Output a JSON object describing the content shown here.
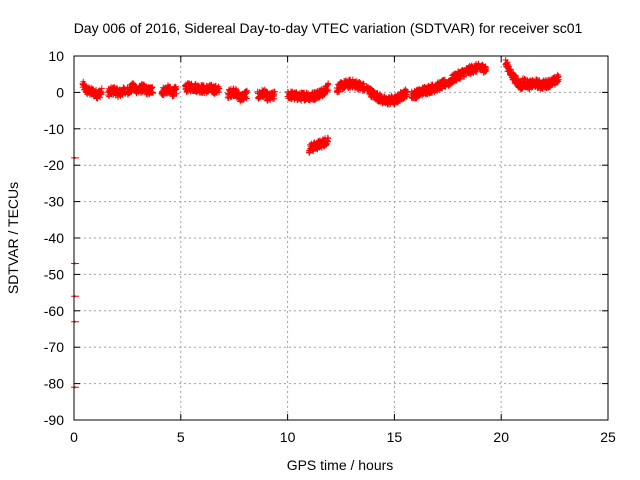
{
  "chart_data": {
    "type": "scatter",
    "title": "Day 006 of 2016, Sidereal Day-to-day VTEC variation (SDTVAR) for receiver sc01",
    "xlabel": "GPS time / hours",
    "ylabel": "SDTVAR / TECUs",
    "xlim": [
      0,
      25
    ],
    "ylim": [
      -90,
      10
    ],
    "xticks": [
      "0",
      "5",
      "10",
      "15",
      "20",
      "25"
    ],
    "yticks": [
      "10",
      "0",
      "-10",
      "-20",
      "-30",
      "-40",
      "-50",
      "-60",
      "-70",
      "-80",
      "-90"
    ],
    "grid": true,
    "marker": "plus",
    "series_color": "#ff0000",
    "segments": [
      {
        "x_start": 0.4,
        "x_end": 1.3,
        "points": [
          [
            0.4,
            2
          ],
          [
            0.6,
            0.5
          ],
          [
            0.9,
            0
          ],
          [
            1.1,
            -0.5
          ],
          [
            1.3,
            0
          ]
        ]
      },
      {
        "x_start": 1.6,
        "x_end": 2.4,
        "points": [
          [
            1.6,
            0
          ],
          [
            1.9,
            0.5
          ],
          [
            2.1,
            -0.3
          ],
          [
            2.4,
            0.5
          ]
        ]
      },
      {
        "x_start": 2.5,
        "x_end": 3.7,
        "points": [
          [
            2.5,
            0.5
          ],
          [
            2.8,
            1.5
          ],
          [
            3.0,
            0.5
          ],
          [
            3.2,
            1.2
          ],
          [
            3.5,
            0.3
          ],
          [
            3.7,
            0.8
          ]
        ]
      },
      {
        "x_start": 4.1,
        "x_end": 4.8,
        "points": [
          [
            4.1,
            0.2
          ],
          [
            4.4,
            0.8
          ],
          [
            4.6,
            0
          ],
          [
            4.8,
            0.5
          ]
        ]
      },
      {
        "x_start": 5.2,
        "x_end": 6.8,
        "points": [
          [
            5.2,
            1.2
          ],
          [
            5.5,
            1.5
          ],
          [
            5.8,
            1.2
          ],
          [
            6.1,
            0.8
          ],
          [
            6.4,
            1.0
          ],
          [
            6.8,
            0.5
          ]
        ]
      },
      {
        "x_start": 7.2,
        "x_end": 8.1,
        "points": [
          [
            7.2,
            -0.5
          ],
          [
            7.5,
            0.3
          ],
          [
            7.8,
            -1.5
          ],
          [
            8.1,
            -0.5
          ]
        ]
      },
      {
        "x_start": 8.6,
        "x_end": 9.4,
        "points": [
          [
            8.6,
            -1.0
          ],
          [
            8.9,
            -0.2
          ],
          [
            9.1,
            -1.5
          ],
          [
            9.4,
            -0.8
          ]
        ]
      },
      {
        "x_start": 10.0,
        "x_end": 11.0,
        "points": [
          [
            10.0,
            -0.5
          ],
          [
            10.3,
            -1.0
          ],
          [
            10.6,
            -1.2
          ],
          [
            11.0,
            -0.8
          ]
        ]
      },
      {
        "x_start": 11.0,
        "x_end": 11.9,
        "points": [
          [
            11.0,
            -1.5
          ],
          [
            11.3,
            -0.8
          ],
          [
            11.6,
            0
          ],
          [
            11.9,
            1.5
          ]
        ]
      },
      {
        "x_start": 11.0,
        "x_end": 11.9,
        "points": [
          [
            11.0,
            -15.5
          ],
          [
            11.2,
            -15.0
          ],
          [
            11.5,
            -14.3
          ],
          [
            11.7,
            -13.8
          ],
          [
            11.9,
            -13.0
          ]
        ]
      },
      {
        "x_start": 12.3,
        "x_end": 13.6,
        "points": [
          [
            12.3,
            1.0
          ],
          [
            12.6,
            2.0
          ],
          [
            13.0,
            2.5
          ],
          [
            13.3,
            2.0
          ],
          [
            13.6,
            1.2
          ]
        ]
      },
      {
        "x_start": 13.7,
        "x_end": 14.9,
        "points": [
          [
            13.7,
            1.0
          ],
          [
            14.0,
            -0.5
          ],
          [
            14.3,
            -1.5
          ],
          [
            14.6,
            -2.5
          ],
          [
            14.9,
            -2.0
          ]
        ]
      },
      {
        "x_start": 14.9,
        "x_end": 15.6,
        "points": [
          [
            14.9,
            -2.5
          ],
          [
            15.1,
            -2.0
          ],
          [
            15.3,
            -1.0
          ],
          [
            15.6,
            0
          ]
        ]
      },
      {
        "x_start": 15.8,
        "x_end": 17.4,
        "points": [
          [
            15.8,
            -0.8
          ],
          [
            16.1,
            -0.3
          ],
          [
            16.4,
            0.5
          ],
          [
            16.7,
            1.0
          ],
          [
            17.0,
            1.5
          ],
          [
            17.4,
            2.5
          ]
        ]
      },
      {
        "x_start": 17.5,
        "x_end": 19.3,
        "points": [
          [
            17.5,
            2.5
          ],
          [
            17.8,
            4.0
          ],
          [
            18.1,
            5.0
          ],
          [
            18.4,
            5.8
          ],
          [
            18.7,
            6.5
          ],
          [
            19.0,
            6.8
          ],
          [
            19.3,
            6.5
          ]
        ]
      },
      {
        "x_start": 20.2,
        "x_end": 20.4,
        "points": [
          [
            20.2,
            8.0
          ],
          [
            20.3,
            7.0
          ],
          [
            20.4,
            6.5
          ]
        ]
      },
      {
        "x_start": 20.4,
        "x_end": 21.0,
        "points": [
          [
            20.4,
            5.5
          ],
          [
            20.6,
            4.0
          ],
          [
            20.8,
            2.5
          ],
          [
            21.0,
            1.5
          ]
        ]
      },
      {
        "x_start": 21.0,
        "x_end": 22.7,
        "points": [
          [
            21.0,
            3.0
          ],
          [
            21.3,
            2.0
          ],
          [
            21.6,
            2.5
          ],
          [
            21.9,
            2.0
          ],
          [
            22.2,
            2.5
          ],
          [
            22.5,
            3.0
          ],
          [
            22.7,
            4.0
          ]
        ]
      }
    ],
    "isolated_points": [
      [
        0.05,
        -18
      ],
      [
        0.05,
        -47
      ],
      [
        0.05,
        -56
      ],
      [
        0.05,
        -63
      ],
      [
        0.05,
        -81
      ]
    ]
  }
}
